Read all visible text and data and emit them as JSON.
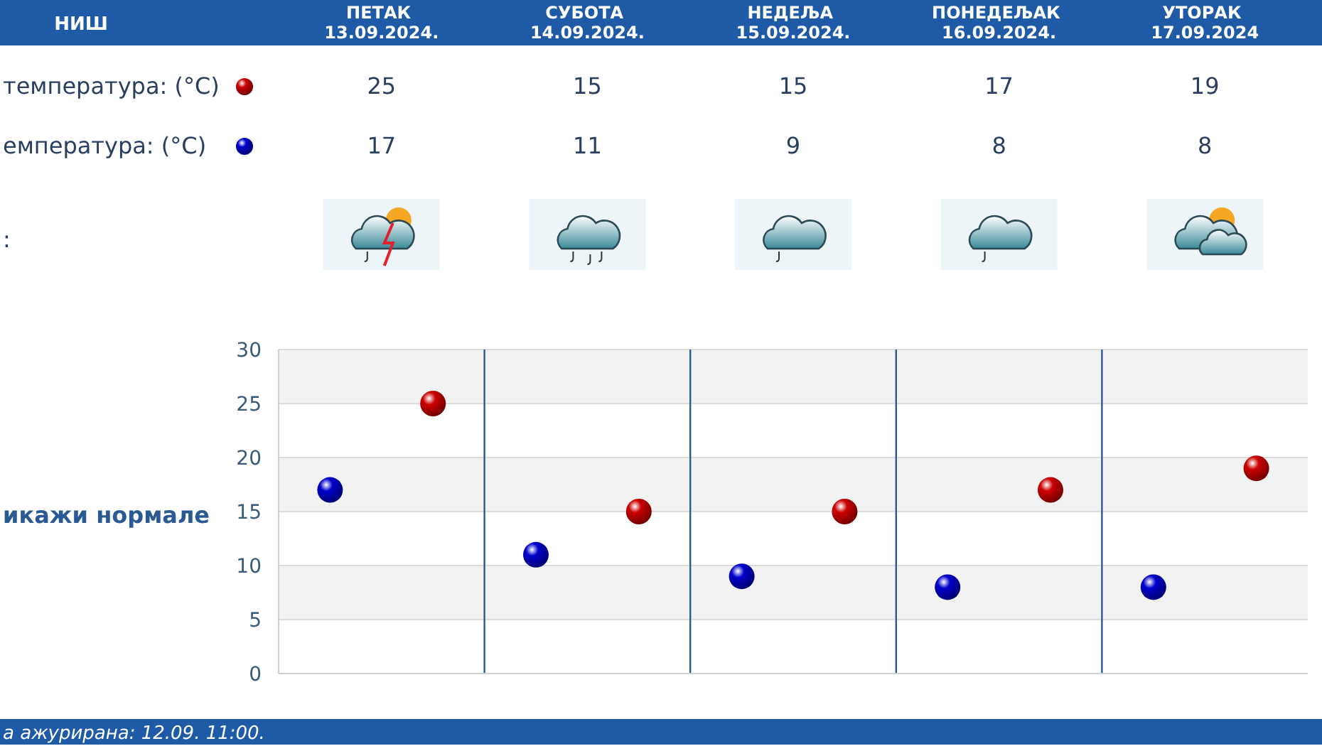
{
  "chart_data": {
    "type": "scatter",
    "title": "НИШ",
    "categories": [
      null,
      null,
      null,
      null,
      null
    ],
    "series": [
      {
        "name": "температура: (°C)",
        "color": "#cc0000",
        "values": [
          25,
          15,
          15,
          17,
          19
        ]
      },
      {
        "name": "емпература: (°C)",
        "color": "#0000cc",
        "values": [
          17,
          11,
          9,
          8,
          8
        ]
      }
    ],
    "ylim": [
      0,
      30
    ],
    "yticks": [
      0,
      5,
      10,
      15,
      20,
      25,
      30
    ],
    "grid": "y",
    "tick_labels": "y",
    "legend": "top left",
    "marker": "circle",
    "data_labels": true,
    "annotations": [
      ":",
      "икажи нормале",
      "а ажурирана:  12.09. 11:00.",
      "ПЕТАК\n13.09.2024.",
      "СУБОТА\n14.09.2024.",
      "НЕДЕЉА\n15.09.2024.",
      "ПОНЕДЕЉАК\n16.09.2024.",
      "УТОРАК\n17.09.2024"
    ]
  }
}
